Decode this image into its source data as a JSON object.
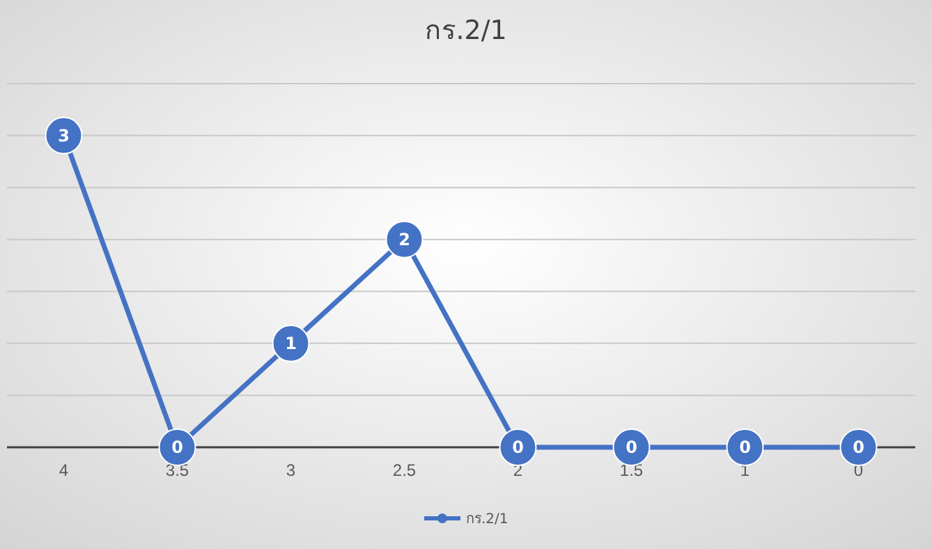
{
  "chart_data": {
    "type": "line",
    "title": "กร.2/1",
    "categories": [
      "4",
      "3.5",
      "3",
      "2.5",
      "2",
      "1.5",
      "1",
      "0"
    ],
    "series": [
      {
        "name": "กร.2/1",
        "color": "#4472c4",
        "values": [
          3,
          0,
          1,
          2,
          0,
          0,
          0,
          0
        ]
      }
    ],
    "ylim": [
      0,
      3.5
    ],
    "yticks": [
      {
        "value": 0,
        "label": null
      },
      {
        "value": 0.5,
        "label": null
      },
      {
        "value": 1,
        "label": null
      },
      {
        "value": 1.5,
        "label": null
      },
      {
        "value": 2,
        "label": null
      },
      {
        "value": 2.5,
        "label": null
      },
      {
        "value": 3,
        "label": null
      },
      {
        "value": 3.5,
        "label": null
      }
    ],
    "tick_labels": "x",
    "grid": "y",
    "legend": "bottom",
    "marker": "circle",
    "line_style": "solid",
    "data_labels": true
  }
}
